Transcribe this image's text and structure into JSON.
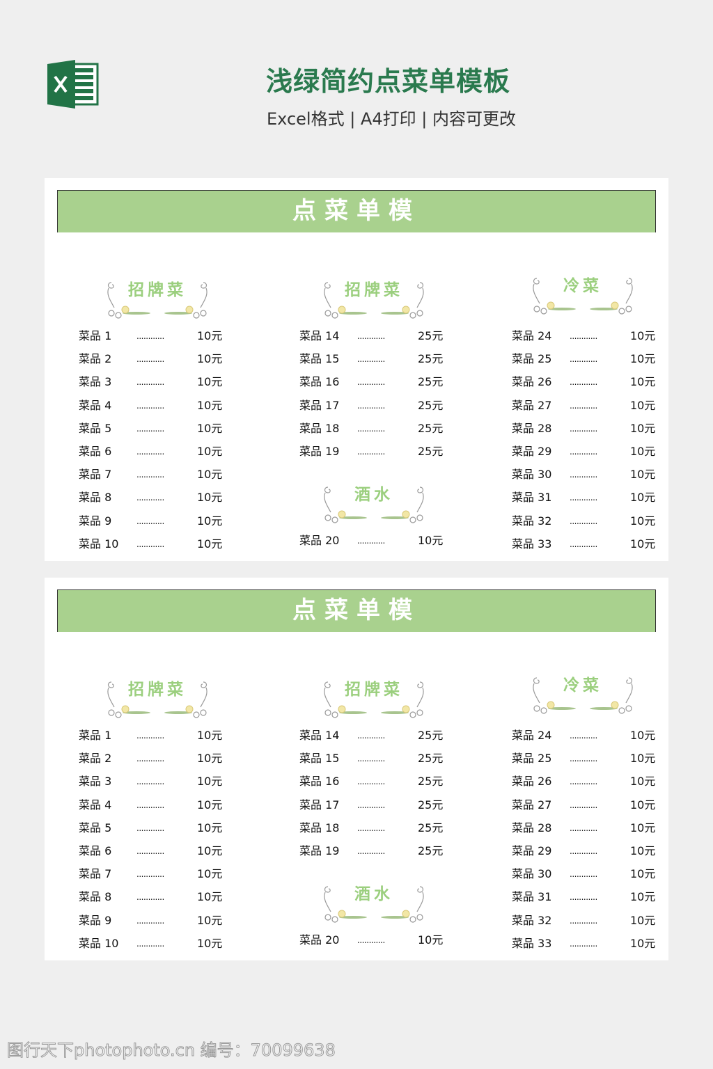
{
  "header": {
    "title": "浅绿简约点菜单模板",
    "subtitle": "Excel格式 | A4打印 | 内容可更改",
    "logo_icon": "excel-icon",
    "brand_color": "#2a7a4e"
  },
  "menu": {
    "banner": "点菜单模",
    "accent_color": "#a9d18e",
    "sections": [
      {
        "title": "招牌菜",
        "items": [
          [
            "菜品 1",
            "10元"
          ],
          [
            "菜品 2",
            "10元"
          ],
          [
            "菜品 3",
            "10元"
          ],
          [
            "菜品 4",
            "10元"
          ],
          [
            "菜品 5",
            "10元"
          ],
          [
            "菜品 6",
            "10元"
          ],
          [
            "菜品 7",
            "10元"
          ],
          [
            "菜品 8",
            "10元"
          ],
          [
            "菜品 9",
            "10元"
          ],
          [
            "菜品 10",
            "10元"
          ]
        ]
      },
      {
        "title": "招牌菜",
        "items": [
          [
            "菜品 14",
            "25元"
          ],
          [
            "菜品 15",
            "25元"
          ],
          [
            "菜品 16",
            "25元"
          ],
          [
            "菜品 17",
            "25元"
          ],
          [
            "菜品 18",
            "25元"
          ],
          [
            "菜品 19",
            "25元"
          ]
        ]
      },
      {
        "title": "酒水",
        "items": [
          [
            "菜品 20",
            "10元"
          ]
        ]
      },
      {
        "title": "冷菜",
        "items": [
          [
            "菜品 24",
            "10元"
          ],
          [
            "菜品 25",
            "10元"
          ],
          [
            "菜品 26",
            "10元"
          ],
          [
            "菜品 27",
            "10元"
          ],
          [
            "菜品 28",
            "10元"
          ],
          [
            "菜品 29",
            "10元"
          ],
          [
            "菜品 30",
            "10元"
          ],
          [
            "菜品 31",
            "10元"
          ],
          [
            "菜品 32",
            "10元"
          ],
          [
            "菜品 33",
            "10元"
          ]
        ]
      }
    ],
    "leader": "............"
  },
  "watermark": "图行天下photophoto.cn 编号：70099638"
}
